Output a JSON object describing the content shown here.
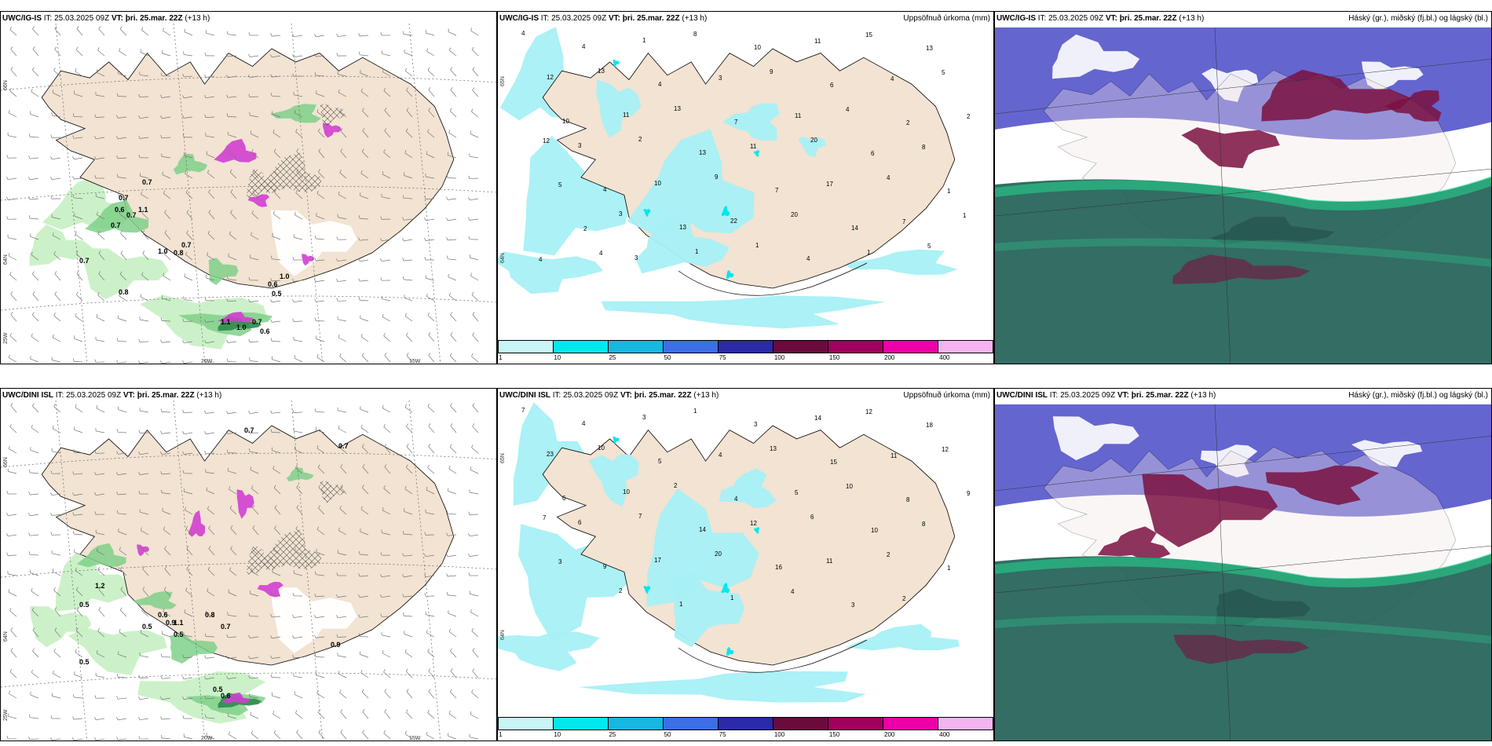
{
  "row1": {
    "wind_panel": {
      "model": "UWC/IG-IS",
      "it_label": "IT:",
      "it_value": "25.03.2025 09Z",
      "vt_label": "VT: þri. 25.mar. 22Z",
      "lead": "(+13 h)",
      "lat_labels": [
        "66N",
        "64N",
        "25W"
      ],
      "lon_labels": [
        "20W",
        "15W"
      ],
      "values": [
        "0.7",
        "0.7",
        "0.6",
        "0.7",
        "1.1",
        "0.7",
        "0.7",
        "1.0",
        "0.8",
        "0.7",
        "1.0",
        "0.6",
        "0.5",
        "0.8",
        "0.7",
        "0.6",
        "1.1",
        "1.0"
      ]
    },
    "precip_panel": {
      "model": "UWC/IG-IS",
      "it_label": "IT:",
      "it_value": "25.03.2025 09Z",
      "vt_label": "VT: þri. 25.mar. 22Z",
      "lead": "(+13 h)",
      "right_title": "Uppsöfnuð úrkoma (mm)",
      "lat_labels": [
        "65N",
        "64N"
      ],
      "values": [
        "4",
        "4",
        "1",
        "8",
        "10",
        "11",
        "15",
        "13",
        "12",
        "13",
        "4",
        "3",
        "9",
        "6",
        "4",
        "5",
        "10",
        "11",
        "13",
        "7",
        "11",
        "4",
        "2",
        "2",
        "3",
        "2",
        "13",
        "11",
        "20",
        "6",
        "8",
        "12",
        "4",
        "10",
        "9",
        "7",
        "17",
        "4",
        "1",
        "5",
        "3",
        "13",
        "22",
        "20",
        "14",
        "7",
        "1",
        "2",
        "3",
        "1",
        "1",
        "4",
        "1",
        "5",
        "4",
        "4"
      ]
    },
    "cloud_panel": {
      "model": "UWC/IG-IS",
      "it_label": "IT:",
      "it_value": "25.03.2025 09Z",
      "vt_label": "VT: þri. 25.mar. 22Z",
      "lead": "(+13 h)",
      "right_title": "Háský (gr.), miðský (fj.bl.) og lágský (bl.)"
    }
  },
  "row2": {
    "wind_panel": {
      "model": "UWC/DINI ISL",
      "it_label": "IT:",
      "it_value": "25.03.2025 09Z",
      "vt_label": "VT: þri. 25.mar. 22Z",
      "lead": "(+13 h)",
      "lat_labels": [
        "66N",
        "64N",
        "25W"
      ],
      "lon_labels": [
        "20W",
        "15W"
      ],
      "values": [
        "0.7",
        "0.7",
        "1.2",
        "0.5",
        "0.9",
        "0.5",
        "0.6",
        "0.5",
        "1.1",
        "0.7",
        "0.8",
        "0.5",
        "0.5",
        "0.6",
        "0.9"
      ]
    },
    "precip_panel": {
      "model": "UWC/DINI ISL",
      "it_label": "IT:",
      "it_value": "25.03.2025 09Z",
      "vt_label": "VT: þri. 25.mar. 22Z",
      "lead": "(+13 h)",
      "right_title": "Uppsöfnuð úrkoma (mm)",
      "lat_labels": [
        "65N",
        "64N"
      ],
      "values": [
        "7",
        "4",
        "3",
        "1",
        "3",
        "14",
        "12",
        "18",
        "23",
        "10",
        "5",
        "4",
        "13",
        "15",
        "11",
        "12",
        "6",
        "10",
        "2",
        "4",
        "5",
        "10",
        "8",
        "9",
        "6",
        "7",
        "14",
        "12",
        "6",
        "10",
        "8",
        "7",
        "9",
        "17",
        "20",
        "16",
        "11",
        "2",
        "1",
        "3",
        "2",
        "1",
        "1",
        "4",
        "3",
        "2"
      ]
    },
    "cloud_panel": {
      "model": "UWC/DINI ISL",
      "it_label": "IT:",
      "it_value": "25.03.2025 09Z",
      "vt_label": "VT: þri. 25.mar. 22Z",
      "lead": "(+13 h)",
      "right_title": "Háský (gr.), miðský (fj.bl.) og lágský (bl.)"
    }
  },
  "colorbar": {
    "labels": [
      "1",
      "10",
      "25",
      "50",
      "75",
      "100",
      "150",
      "200",
      "400"
    ],
    "colors": [
      "#c8f5f7",
      "#00e8ee",
      "#16b7e0",
      "#3c6ee6",
      "#2b2aa8",
      "#6b0a3c",
      "#a0005e",
      "#ee00a8",
      "#f4b4f0"
    ]
  },
  "colors": {
    "land": "#f2e3d2",
    "precip_light": "#a6f0f5",
    "green_light": "#c6efc2",
    "green_mid": "#7fd08a",
    "green_dark": "#2e8b4e",
    "magenta": "#d23ed0",
    "cloud_high": "#4a4ac8",
    "cloud_mid": "#7a1040",
    "cloud_low": "#1d5d52"
  }
}
